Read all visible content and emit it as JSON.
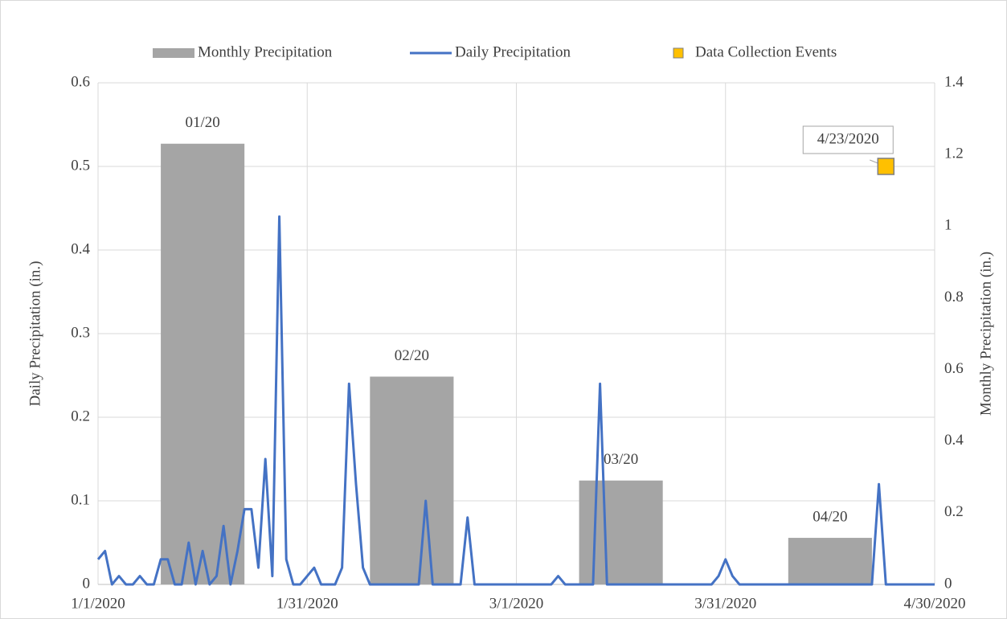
{
  "chart_data": {
    "type": "combo",
    "y_label": "Daily Precipitation (in.)",
    "y2_label": "Monthly Precipitation (in.)",
    "xlim": [
      "1/1/2020",
      "4/30/2020"
    ],
    "xticks": [
      "1/1/2020",
      "1/31/2020",
      "3/1/2020",
      "3/31/2020",
      "4/30/2020"
    ],
    "ylim": [
      0,
      0.6
    ],
    "yticks": [
      0,
      0.1,
      0.2,
      0.3,
      0.4,
      0.5,
      0.6
    ],
    "y2lim": [
      0,
      1.4
    ],
    "y2ticks": [
      0,
      0.2,
      0.4,
      0.6,
      0.8,
      1,
      1.2,
      1.4
    ],
    "grid": true,
    "legend": "top",
    "series": [
      {
        "name": "Monthly Precipitation",
        "type": "bar",
        "axis": "y2",
        "color": "#a5a5a5",
        "categories": [
          "01/20",
          "02/20",
          "03/20",
          "04/20"
        ],
        "x": [
          "1/16/2020",
          "2/15/2020",
          "3/16/2020",
          "4/15/2020"
        ],
        "values": [
          1.23,
          0.58,
          0.29,
          0.13
        ]
      },
      {
        "name": "Daily Precipitation",
        "type": "line",
        "color": "#4472c4",
        "x": [
          "1/1/2020",
          "1/2/2020",
          "1/3/2020",
          "1/4/2020",
          "1/5/2020",
          "1/6/2020",
          "1/7/2020",
          "1/8/2020",
          "1/9/2020",
          "1/10/2020",
          "1/11/2020",
          "1/12/2020",
          "1/13/2020",
          "1/14/2020",
          "1/15/2020",
          "1/16/2020",
          "1/17/2020",
          "1/18/2020",
          "1/19/2020",
          "1/20/2020",
          "1/21/2020",
          "1/22/2020",
          "1/23/2020",
          "1/24/2020",
          "1/25/2020",
          "1/26/2020",
          "1/27/2020",
          "1/28/2020",
          "1/29/2020",
          "1/30/2020",
          "1/31/2020",
          "2/1/2020",
          "2/2/2020",
          "2/3/2020",
          "2/4/2020",
          "2/5/2020",
          "2/6/2020",
          "2/7/2020",
          "2/8/2020",
          "2/9/2020",
          "2/10/2020",
          "2/11/2020",
          "2/12/2020",
          "2/13/2020",
          "2/14/2020",
          "2/15/2020",
          "2/16/2020",
          "2/17/2020",
          "2/18/2020",
          "2/19/2020",
          "2/20/2020",
          "2/21/2020",
          "2/22/2020",
          "2/23/2020",
          "2/24/2020",
          "2/25/2020",
          "2/26/2020",
          "2/27/2020",
          "2/28/2020",
          "2/29/2020",
          "3/1/2020",
          "3/2/2020",
          "3/3/2020",
          "3/4/2020",
          "3/5/2020",
          "3/6/2020",
          "3/7/2020",
          "3/8/2020",
          "3/9/2020",
          "3/10/2020",
          "3/11/2020",
          "3/12/2020",
          "3/13/2020",
          "3/14/2020",
          "3/15/2020",
          "3/16/2020",
          "3/17/2020",
          "3/18/2020",
          "3/19/2020",
          "3/20/2020",
          "3/21/2020",
          "3/22/2020",
          "3/23/2020",
          "3/24/2020",
          "3/25/2020",
          "3/26/2020",
          "3/27/2020",
          "3/28/2020",
          "3/29/2020",
          "3/30/2020",
          "3/31/2020",
          "4/1/2020",
          "4/2/2020",
          "4/3/2020",
          "4/4/2020",
          "4/5/2020",
          "4/6/2020",
          "4/7/2020",
          "4/8/2020",
          "4/9/2020",
          "4/10/2020",
          "4/11/2020",
          "4/12/2020",
          "4/13/2020",
          "4/14/2020",
          "4/15/2020",
          "4/16/2020",
          "4/17/2020",
          "4/18/2020",
          "4/19/2020",
          "4/20/2020",
          "4/21/2020",
          "4/22/2020",
          "4/23/2020",
          "4/24/2020",
          "4/25/2020",
          "4/26/2020",
          "4/27/2020",
          "4/28/2020",
          "4/29/2020",
          "4/30/2020"
        ],
        "values": [
          0.03,
          0.04,
          0,
          0.01,
          0,
          0,
          0.01,
          0,
          0,
          0.03,
          0.03,
          0,
          0,
          0.05,
          0,
          0.04,
          0,
          0.01,
          0.07,
          0,
          0.04,
          0.09,
          0.09,
          0.02,
          0.15,
          0.01,
          0.44,
          0.03,
          0,
          0,
          0.01,
          0.02,
          0,
          0,
          0,
          0.02,
          0.24,
          0.12,
          0.02,
          0,
          0,
          0,
          0,
          0,
          0,
          0,
          0,
          0.1,
          0,
          0,
          0,
          0,
          0,
          0.08,
          0,
          0,
          0,
          0,
          0,
          0,
          0,
          0,
          0,
          0,
          0,
          0,
          0.01,
          0,
          0,
          0,
          0,
          0,
          0.24,
          0,
          0,
          0,
          0,
          0,
          0,
          0,
          0,
          0,
          0,
          0,
          0,
          0,
          0,
          0,
          0,
          0.01,
          0.03,
          0.01,
          0,
          0,
          0,
          0,
          0,
          0,
          0,
          0,
          0,
          0,
          0,
          0,
          0,
          0,
          0,
          0,
          0,
          0,
          0,
          0,
          0.12,
          0,
          0,
          0,
          0,
          0,
          0,
          0,
          0
        ]
      },
      {
        "name": "Data Collection Events",
        "type": "scatter",
        "color": "#ffc000",
        "x": [
          "4/23/2020"
        ],
        "values": [
          0.5
        ],
        "labels": [
          "4/23/2020"
        ]
      }
    ]
  }
}
